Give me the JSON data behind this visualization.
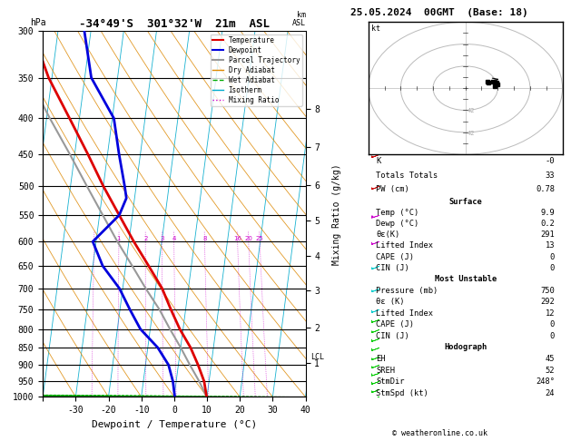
{
  "title_left": "-34°49'S  301°32'W  21m  ASL",
  "title_right": "25.05.2024  00GMT  (Base: 18)",
  "xlabel": "Dewpoint / Temperature (°C)",
  "pressure_levels": [
    300,
    350,
    400,
    450,
    500,
    550,
    600,
    650,
    700,
    750,
    800,
    850,
    900,
    950,
    1000
  ],
  "temp_profile_p": [
    1000,
    950,
    900,
    850,
    800,
    750,
    700,
    650,
    600,
    550,
    500,
    450,
    400,
    350,
    300
  ],
  "temp_profile_t": [
    9.9,
    8.5,
    6.0,
    3.0,
    -1.0,
    -4.5,
    -8.0,
    -13.0,
    -18.5,
    -24.0,
    -30.0,
    -36.0,
    -43.0,
    -51.0,
    -58.0
  ],
  "dewp_profile_p": [
    1000,
    950,
    900,
    850,
    800,
    750,
    700,
    650,
    600,
    550,
    520,
    500,
    450,
    400,
    350,
    300
  ],
  "dewp_profile_t": [
    0.2,
    -1.0,
    -3.0,
    -7.0,
    -13.0,
    -17.0,
    -21.0,
    -27.0,
    -31.0,
    -24.0,
    -22.5,
    -23.5,
    -26.5,
    -29.5,
    -38.0,
    -42.0
  ],
  "parcel_profile_p": [
    1000,
    950,
    900,
    850,
    800,
    750,
    700,
    650,
    600,
    550,
    500,
    450,
    400,
    350,
    300
  ],
  "parcel_profile_t": [
    9.9,
    7.0,
    3.5,
    0.0,
    -4.0,
    -8.0,
    -13.0,
    -18.0,
    -23.5,
    -29.0,
    -35.0,
    -41.5,
    -49.0,
    -57.0,
    -65.0
  ],
  "t_min": -40,
  "t_max": 40,
  "skew_factor": 28,
  "km_ticks": [
    1,
    2,
    3,
    4,
    5,
    6,
    7,
    8
  ],
  "km_pressures": [
    895,
    795,
    705,
    628,
    560,
    498,
    440,
    388
  ],
  "lcl_pressure": 878,
  "background_color": "#ffffff",
  "temp_color": "#dd0000",
  "dewp_color": "#0000dd",
  "parcel_color": "#999999",
  "dry_adiabat_color": "#dd8800",
  "wet_adiabat_color": "#00aa00",
  "isotherm_color": "#00aacc",
  "mixing_ratio_color": "#cc00cc",
  "stats": {
    "K": "-0",
    "Totals_Totals": "33",
    "PW_cm": "0.78",
    "Surface_Temp": "9.9",
    "Surface_Dewp": "0.2",
    "Surface_theta_e": "291",
    "Surface_LI": "13",
    "Surface_CAPE": "0",
    "Surface_CIN": "0",
    "MU_Pressure": "750",
    "MU_theta_e": "292",
    "MU_LI": "12",
    "MU_CAPE": "0",
    "MU_CIN": "0",
    "EH": "45",
    "SREH": "52",
    "StmDir": "248°",
    "StmSpd": "24"
  },
  "wind_pressures": [
    1000,
    975,
    950,
    925,
    900,
    875,
    850,
    825,
    800,
    775,
    750,
    700,
    650,
    600,
    550,
    500,
    450,
    400,
    350,
    300
  ],
  "wind_speeds": [
    15,
    15,
    18,
    20,
    15,
    15,
    20,
    18,
    15,
    18,
    20,
    15,
    15,
    20,
    25,
    15,
    15,
    20,
    15,
    10
  ],
  "wind_dirs": [
    248,
    248,
    250,
    252,
    248,
    248,
    250,
    250,
    248,
    250,
    250,
    248,
    248,
    250,
    252,
    248,
    248,
    250,
    248,
    245
  ],
  "wind_colors": [
    "#00cc00",
    "#00cc00",
    "#00cc00",
    "#00cc00",
    "#00cc00",
    "#00cc00",
    "#00cc00",
    "#00cc00",
    "#00cc00",
    "#00cc00",
    "#00cccc",
    "#00cccc",
    "#00cccc",
    "#cc00cc",
    "#cc00cc",
    "#cc0000",
    "#cc0000",
    "#ff44aa",
    "#ff44aa",
    "#ff44aa"
  ]
}
